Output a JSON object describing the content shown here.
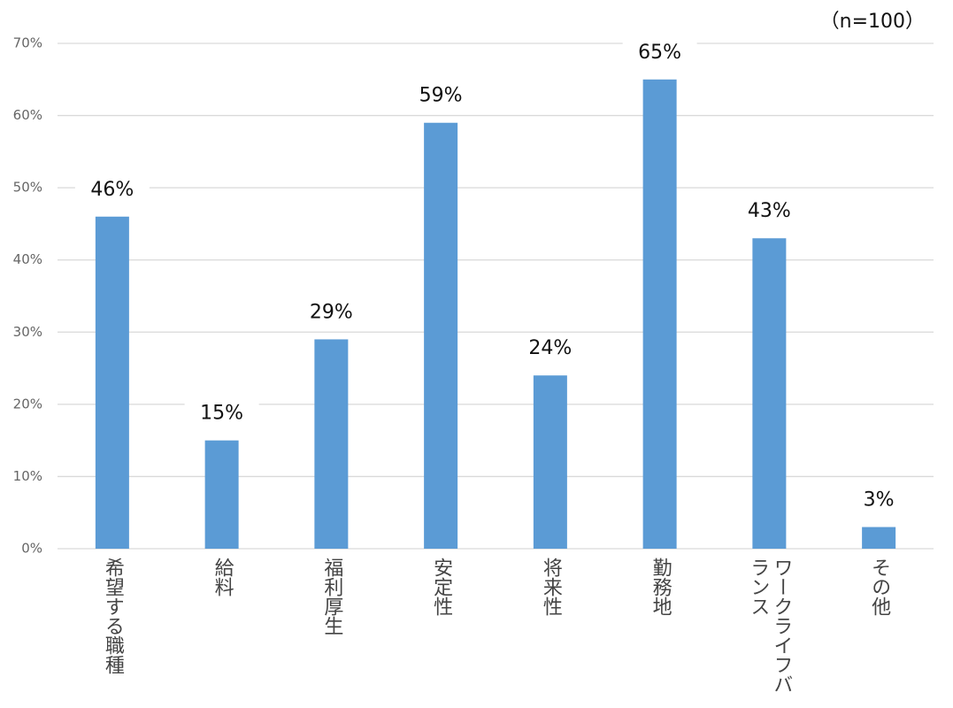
{
  "chart_data": {
    "type": "bar",
    "annotation": "（n=100）",
    "categories": [
      "希望する職種",
      "給料",
      "福利厚生",
      "安定性",
      "将来性",
      "勤務地",
      "ワークライフバランス",
      "その他"
    ],
    "values": [
      46,
      15,
      29,
      59,
      24,
      65,
      43,
      3
    ],
    "value_labels": [
      "46%",
      "15%",
      "29%",
      "59%",
      "24%",
      "65%",
      "43%",
      "3%"
    ],
    "color": "#5b9bd5",
    "ylim": [
      0,
      70
    ],
    "yticks": [
      {
        "value": 0,
        "label": "0%"
      },
      {
        "value": 10,
        "label": "10%"
      },
      {
        "value": 20,
        "label": "20%"
      },
      {
        "value": 30,
        "label": "30%"
      },
      {
        "value": 40,
        "label": "40%"
      },
      {
        "value": 50,
        "label": "50%"
      },
      {
        "value": 60,
        "label": "60%"
      },
      {
        "value": 70,
        "label": "70%"
      }
    ],
    "grid": true
  }
}
